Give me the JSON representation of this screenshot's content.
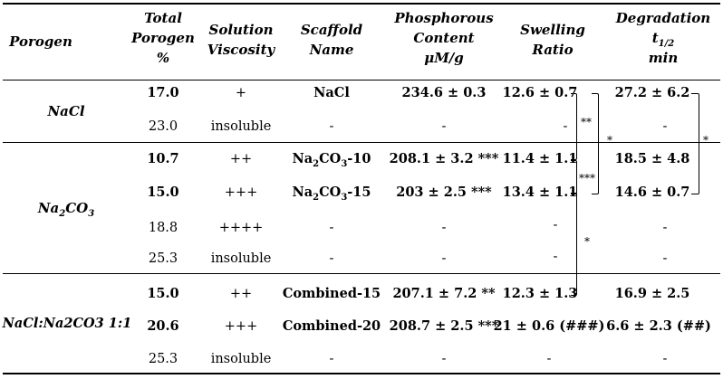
{
  "headers": {
    "porogen": "Porogen",
    "total_porogen": [
      "Total",
      "Porogen",
      "%"
    ],
    "viscosity": [
      "Solution",
      "Viscosity"
    ],
    "scaffold_name": [
      "Scaffold",
      "Name"
    ],
    "phosphorous": [
      "Phosphorous",
      "Content",
      "μM/g"
    ],
    "swelling": [
      "Swelling",
      "Ratio"
    ],
    "degradation": [
      "Degradation",
      "t",
      "1/2",
      "min"
    ]
  },
  "groups": {
    "nacl": "NaCl",
    "na2co3": {
      "main": "Na",
      "sub1": "2",
      "mid": "CO",
      "sub2": "3"
    },
    "combined": "NaCl:Na2CO3 1:1"
  },
  "rows": [
    {
      "total": "17.0",
      "viscosity": "+",
      "scaffold": "NaCl",
      "phosphorous": "234.6 ± 0.3",
      "swelling": "12.6 ± 0.7",
      "degradation": "27.2 ± 6.2"
    },
    {
      "total": "23.0",
      "viscosity": "insoluble",
      "scaffold": "-",
      "phosphorous": "-",
      "swelling": "-",
      "degradation": "-"
    },
    {
      "total": "10.7",
      "viscosity": "++",
      "scaffold": "Na2CO3-10",
      "phosphorous": "208.1 ± 3.2 ***",
      "swelling": "11.4 ± 1.1",
      "degradation": "18.5 ± 4.8"
    },
    {
      "total": "15.0",
      "viscosity": "+++",
      "scaffold": "Na2CO3-15",
      "phosphorous": "203 ± 2.5 ***",
      "swelling": "13.4 ± 1.1",
      "degradation": "14.6 ± 0.7"
    },
    {
      "total": "18.8",
      "viscosity": "++++",
      "scaffold": "-",
      "phosphorous": "-",
      "swelling": "-",
      "degradation": "-"
    },
    {
      "total": "25.3",
      "viscosity": "insoluble",
      "scaffold": "-",
      "phosphorous": "-",
      "swelling": "-",
      "degradation": "-"
    },
    {
      "total": "15.0",
      "viscosity": "++",
      "scaffold": "Combined-15",
      "phosphorous": "207.1 ± 7.2 **",
      "swelling": "12.3 ± 1.3",
      "degradation": "16.9 ± 2.5"
    },
    {
      "total": "20.6",
      "viscosity": "+++",
      "scaffold": "Combined-20",
      "phosphorous": "208.7 ± 2.5 ***",
      "swelling": "21 ± 0.6 (###)",
      "degradation": "6.6 ± 2.3 (##)"
    },
    {
      "total": "25.3",
      "viscosity": "insoluble",
      "scaffold": "-",
      "phosphorous": "-",
      "swelling": "-",
      "degradation": "-"
    }
  ],
  "significance": {
    "s1": "**",
    "s2": "*",
    "s3": "***",
    "s4": "*",
    "s5": "*"
  },
  "scaffold_sub": {
    "prefix": "Na",
    "s1": "2",
    "co": "CO",
    "s2": "3",
    "suffix10": "-10",
    "suffix15": "-15"
  }
}
